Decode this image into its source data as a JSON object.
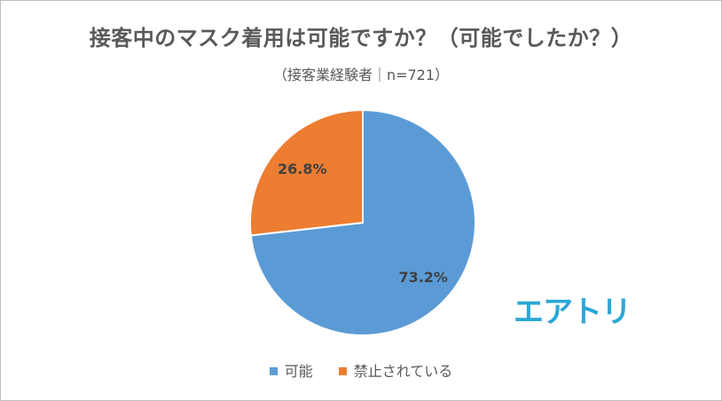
{
  "chart_data": {
    "type": "pie",
    "title": "接客中のマスク着用は可能ですか？（可能でしたか？）",
    "subtitle": "（接客業経験者｜n=721）",
    "categories": [
      "可能",
      "禁止されている"
    ],
    "values": [
      73.2,
      26.8
    ],
    "data_labels": [
      "73.2%",
      "26.8%"
    ],
    "colors": [
      "#5b9bd5",
      "#ed7d31"
    ],
    "legend_position": "bottom"
  },
  "brand": {
    "logo_text": "エアトリ",
    "color": "#2aa7d6"
  }
}
